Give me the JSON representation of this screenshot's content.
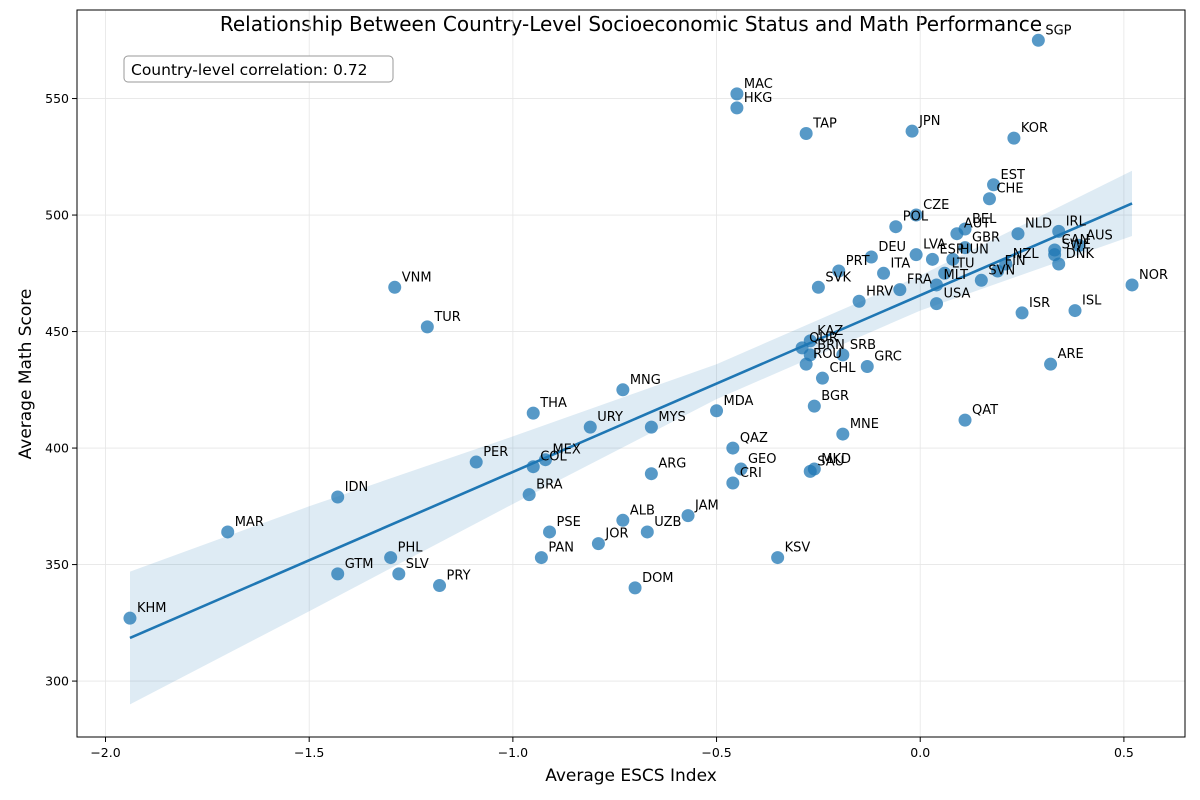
{
  "chart_data": {
    "type": "scatter",
    "title": "Relationship Between Country-Level Socioeconomic Status and Math Performance",
    "xlabel": "Average ESCS Index",
    "ylabel": "Average Math Score",
    "xlim": [
      -2.07,
      0.65
    ],
    "ylim": [
      276,
      588
    ],
    "xticks": [
      -2.0,
      -1.5,
      -1.0,
      -0.5,
      0.0,
      0.5
    ],
    "xtick_labels": [
      "−2.0",
      "−1.5",
      "−1.0",
      "−0.5",
      "0.0",
      "0.5"
    ],
    "yticks": [
      300,
      350,
      400,
      450,
      500,
      550
    ],
    "grid": true,
    "annotation": "Country-level correlation: 0.72",
    "colors": {
      "points": "#1f77b4",
      "regression": "#1f77b4",
      "ci_band": "#1f77b4"
    },
    "regression": {
      "x": [
        -1.94,
        -1.5,
        -1.0,
        -0.5,
        0.0,
        0.52
      ],
      "y": [
        318.5,
        352.0,
        390.0,
        428.5,
        466.5,
        505.0
      ],
      "ci_lower": [
        290,
        330,
        376,
        421,
        459,
        491
      ],
      "ci_upper": [
        347,
        375,
        405,
        436,
        474,
        519
      ]
    },
    "points": [
      {
        "label": "SGP",
        "x": 0.29,
        "y": 575
      },
      {
        "label": "MAC",
        "x": -0.45,
        "y": 552
      },
      {
        "label": "HKG",
        "x": -0.45,
        "y": 546
      },
      {
        "label": "TAP",
        "x": -0.28,
        "y": 535
      },
      {
        "label": "JPN",
        "x": -0.02,
        "y": 536
      },
      {
        "label": "KOR",
        "x": 0.23,
        "y": 533
      },
      {
        "label": "EST",
        "x": 0.18,
        "y": 513
      },
      {
        "label": "CHE",
        "x": 0.17,
        "y": 507
      },
      {
        "label": "CZE",
        "x": -0.01,
        "y": 500
      },
      {
        "label": "POL",
        "x": -0.06,
        "y": 495
      },
      {
        "label": "AUT",
        "x": 0.09,
        "y": 492
      },
      {
        "label": "BEL",
        "x": 0.11,
        "y": 494
      },
      {
        "label": "NLD",
        "x": 0.24,
        "y": 492
      },
      {
        "label": "IRL",
        "x": 0.34,
        "y": 493
      },
      {
        "label": "AUS",
        "x": 0.39,
        "y": 487
      },
      {
        "label": "CAN",
        "x": 0.33,
        "y": 485
      },
      {
        "label": "SWE",
        "x": 0.33,
        "y": 483
      },
      {
        "label": "DNK",
        "x": 0.34,
        "y": 479
      },
      {
        "label": "GBR",
        "x": 0.11,
        "y": 486
      },
      {
        "label": "HUN",
        "x": 0.08,
        "y": 481
      },
      {
        "label": "LVA",
        "x": -0.01,
        "y": 483
      },
      {
        "label": "ESP",
        "x": 0.03,
        "y": 481
      },
      {
        "label": "DEU",
        "x": -0.12,
        "y": 482
      },
      {
        "label": "NZL",
        "x": 0.21,
        "y": 479
      },
      {
        "label": "FIN",
        "x": 0.19,
        "y": 476
      },
      {
        "label": "LTU",
        "x": 0.06,
        "y": 475
      },
      {
        "label": "PRT",
        "x": -0.2,
        "y": 476
      },
      {
        "label": "ITA",
        "x": -0.09,
        "y": 475
      },
      {
        "label": "SVN",
        "x": 0.15,
        "y": 472
      },
      {
        "label": "MLT",
        "x": 0.04,
        "y": 470
      },
      {
        "label": "FRA",
        "x": -0.05,
        "y": 468
      },
      {
        "label": "SVK",
        "x": -0.25,
        "y": 469
      },
      {
        "label": "HRV",
        "x": -0.15,
        "y": 463
      },
      {
        "label": "USA",
        "x": 0.04,
        "y": 462
      },
      {
        "label": "NOR",
        "x": 0.52,
        "y": 470
      },
      {
        "label": "ISR",
        "x": 0.25,
        "y": 458
      },
      {
        "label": "ISL",
        "x": 0.38,
        "y": 459
      },
      {
        "label": "VNM",
        "x": -1.29,
        "y": 469
      },
      {
        "label": "TUR",
        "x": -1.21,
        "y": 452
      },
      {
        "label": "KAZ",
        "x": -0.27,
        "y": 446
      },
      {
        "label": "QUR",
        "x": -0.29,
        "y": 443
      },
      {
        "label": "BRN",
        "x": -0.27,
        "y": 440
      },
      {
        "label": "SRB",
        "x": -0.19,
        "y": 440
      },
      {
        "label": "ROU",
        "x": -0.28,
        "y": 436
      },
      {
        "label": "GRC",
        "x": -0.13,
        "y": 435
      },
      {
        "label": "CHL",
        "x": -0.24,
        "y": 430
      },
      {
        "label": "ARE",
        "x": 0.32,
        "y": 436
      },
      {
        "label": "MNG",
        "x": -0.73,
        "y": 425
      },
      {
        "label": "BGR",
        "x": -0.26,
        "y": 418
      },
      {
        "label": "THA",
        "x": -0.95,
        "y": 415
      },
      {
        "label": "MDA",
        "x": -0.5,
        "y": 416
      },
      {
        "label": "QAT",
        "x": 0.11,
        "y": 412
      },
      {
        "label": "URY",
        "x": -0.81,
        "y": 409
      },
      {
        "label": "MYS",
        "x": -0.66,
        "y": 409
      },
      {
        "label": "MNE",
        "x": -0.19,
        "y": 406
      },
      {
        "label": "QAZ",
        "x": -0.46,
        "y": 400
      },
      {
        "label": "PER",
        "x": -1.09,
        "y": 394
      },
      {
        "label": "MEX",
        "x": -0.92,
        "y": 395
      },
      {
        "label": "COL",
        "x": -0.95,
        "y": 392
      },
      {
        "label": "GEO",
        "x": -0.44,
        "y": 391
      },
      {
        "label": "MKD",
        "x": -0.26,
        "y": 391
      },
      {
        "label": "SAU",
        "x": -0.27,
        "y": 390
      },
      {
        "label": "ARG",
        "x": -0.66,
        "y": 389
      },
      {
        "label": "CRI",
        "x": -0.46,
        "y": 385
      },
      {
        "label": "IDN",
        "x": -1.43,
        "y": 379
      },
      {
        "label": "BRA",
        "x": -0.96,
        "y": 380
      },
      {
        "label": "JAM",
        "x": -0.57,
        "y": 371
      },
      {
        "label": "ALB",
        "x": -0.73,
        "y": 369
      },
      {
        "label": "UZB",
        "x": -0.67,
        "y": 364
      },
      {
        "label": "PSE",
        "x": -0.91,
        "y": 364
      },
      {
        "label": "JOR",
        "x": -0.79,
        "y": 359
      },
      {
        "label": "MAR",
        "x": -1.7,
        "y": 364
      },
      {
        "label": "PHL",
        "x": -1.3,
        "y": 353
      },
      {
        "label": "PAN",
        "x": -0.93,
        "y": 353
      },
      {
        "label": "KSV",
        "x": -0.35,
        "y": 353
      },
      {
        "label": "SLV",
        "x": -1.28,
        "y": 346
      },
      {
        "label": "GTM",
        "x": -1.43,
        "y": 346
      },
      {
        "label": "PRY",
        "x": -1.18,
        "y": 341
      },
      {
        "label": "DOM",
        "x": -0.7,
        "y": 340
      },
      {
        "label": "KHM",
        "x": -1.94,
        "y": 327
      }
    ]
  }
}
